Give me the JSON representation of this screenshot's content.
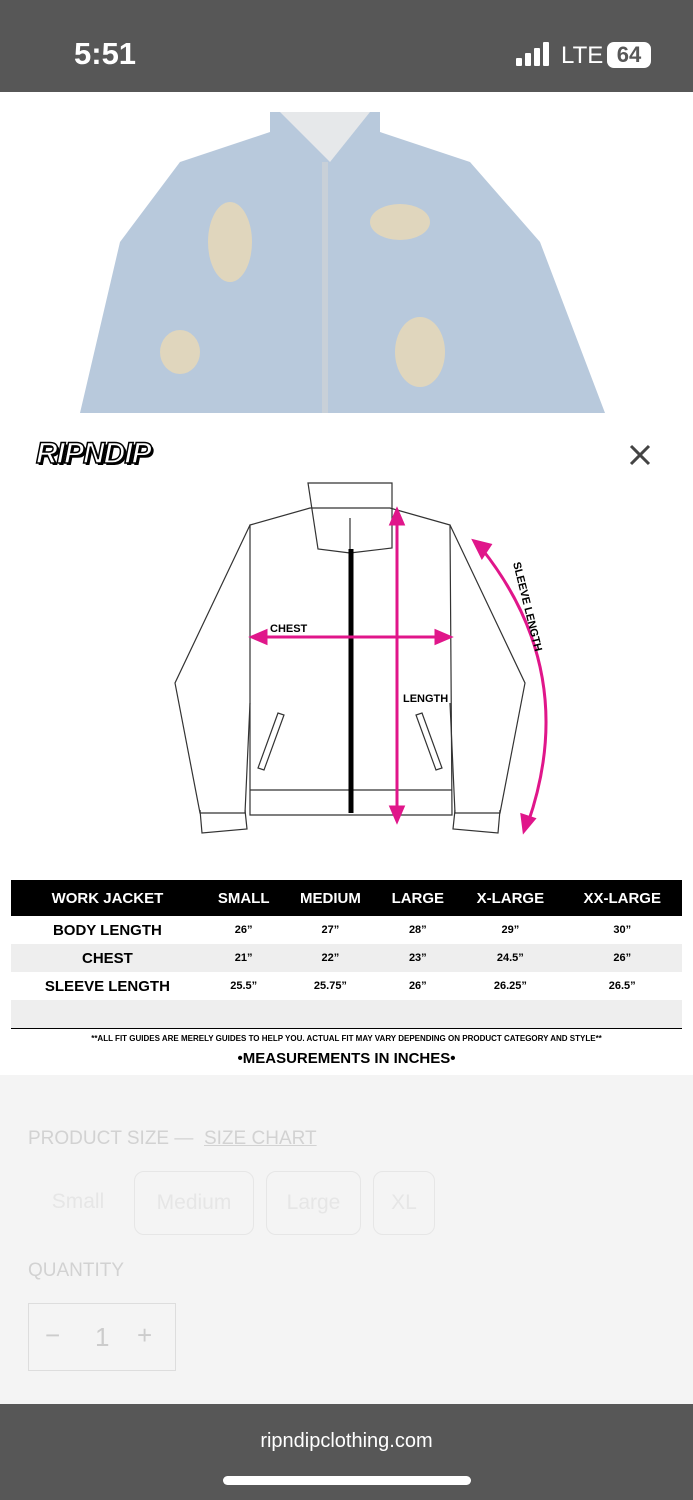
{
  "status_bar": {
    "time": "5:51",
    "network": "LTE",
    "battery": "64"
  },
  "size_guide": {
    "brand": "RIPNDIP",
    "diagram_labels": {
      "chest": "CHEST",
      "length": "LENGTH",
      "sleeve": "SLEEVE LENGTH"
    },
    "table": {
      "header": [
        "WORK JACKET",
        "SMALL",
        "MEDIUM",
        "LARGE",
        "X-LARGE",
        "XX-LARGE"
      ],
      "rows": [
        [
          "BODY LENGTH",
          "26”",
          "27”",
          "28”",
          "29”",
          "30”"
        ],
        [
          "CHEST",
          "21”",
          "22”",
          "23”",
          "24.5”",
          "26”"
        ],
        [
          "SLEEVE LENGTH",
          "25.5”",
          "25.75”",
          "26”",
          "26.25”",
          "26.5”"
        ]
      ]
    },
    "disclaimer": "**ALL FIT GUIDES ARE MERELY GUIDES TO HELP YOU. ACTUAL FIT MAY VARY DEPENDING ON PRODUCT CATEGORY AND STYLE**",
    "units_note": "•MEASUREMENTS IN INCHES•"
  },
  "product": {
    "size_label": "PRODUCT SIZE —",
    "size_chart_link": "SIZE CHART",
    "sizes": [
      "Small",
      "Medium",
      "Large",
      "XL"
    ],
    "quantity_label": "QUANTITY",
    "quantity": "1"
  },
  "browser": {
    "url": "ripndipclothing.com"
  }
}
